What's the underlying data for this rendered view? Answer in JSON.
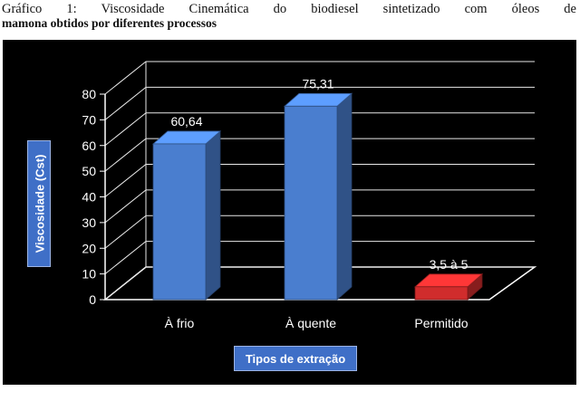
{
  "caption": {
    "line1": "Gráfico 1: Viscosidade Cinemática do biodiesel sintetizado com óleos de",
    "line2": "mamona obtidos por diferentes processos"
  },
  "chart_data": {
    "type": "bar",
    "categories": [
      "À frio",
      "À quente",
      "Permitido"
    ],
    "values": [
      60.64,
      75.31,
      5
    ],
    "data_labels": [
      "60,64",
      "75,31",
      "3,5 à 5"
    ],
    "bar_colors": [
      "#4a7ecf",
      "#4a7ecf",
      "#d02c2c"
    ],
    "xlabel": "Tipos de extração",
    "ylabel": "Viscosidade (Cst)",
    "ylim": [
      0,
      80
    ],
    "yticks": [
      0,
      10,
      20,
      30,
      40,
      50,
      60,
      70,
      80
    ],
    "grid": true,
    "three_d": true,
    "background": "#000000"
  }
}
